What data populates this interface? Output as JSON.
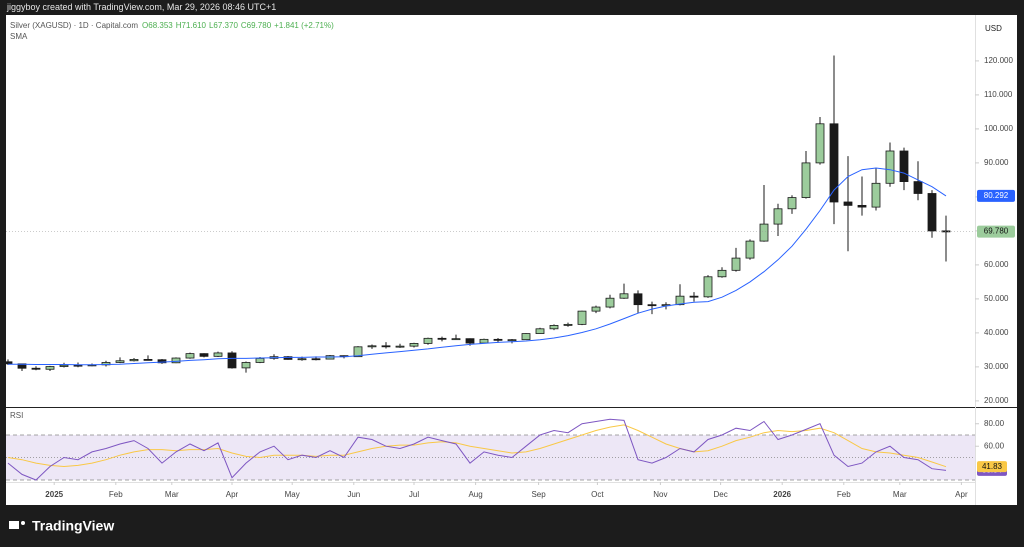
{
  "header": {
    "credit": "jiggyboy created with TradingView.com, Mar 29, 2026 08:46 UTC+1"
  },
  "footer": {
    "logo": "TradingView"
  },
  "chart_data": [
    {
      "type": "candlestick",
      "title": "Silver (XAGUSD) · 1D · Capital.com",
      "ohlc_labels": [
        "O68.353",
        "H71.610",
        "L67.370",
        "C69.780"
      ],
      "change_label": "+1.841 (+2.71%)",
      "indicator_label": "SMA",
      "currency": "USD",
      "up_color": "#9ccc9c",
      "down_color": "#1a1a1a",
      "open": [
        31.5,
        30.9,
        29.6,
        29.3,
        30.1,
        30.5,
        30.3,
        30.6,
        31.3,
        31.8,
        32.2,
        32.1,
        31.2,
        32.6,
        33.9,
        33.1,
        34.1,
        29.7,
        31.3,
        32.5,
        33.0,
        32.2,
        32.4,
        32.3,
        33.3,
        33.0,
        35.9,
        36.2,
        36.0,
        36.1,
        36.9,
        38.4,
        38.2,
        38.3,
        37.0,
        38.1,
        37.9,
        38.0,
        39.8,
        41.2,
        42.2,
        42.5,
        46.4,
        47.6,
        50.2,
        51.5,
        48.3,
        48.0,
        48.3,
        50.8,
        50.6,
        56.5,
        58.4,
        62.0,
        67.0,
        72.0,
        76.5,
        79.8,
        90.0,
        101.5,
        78.5,
        77.5,
        77.0,
        84.0,
        93.5,
        84.5,
        81.0,
        70.0
      ],
      "high": [
        32.2,
        31.0,
        30.2,
        30.3,
        31.2,
        31.3,
        31.0,
        31.8,
        32.8,
        32.6,
        33.4,
        32.3,
        32.8,
        34.2,
        34.0,
        34.5,
        34.6,
        31.6,
        32.9,
        33.7,
        33.2,
        33.0,
        33.1,
        33.5,
        33.4,
        36.1,
        36.6,
        37.3,
        36.8,
        37.1,
        38.6,
        38.9,
        39.5,
        38.4,
        38.3,
        38.5,
        38.2,
        39.9,
        41.5,
        42.5,
        43.0,
        46.5,
        48.0,
        51.2,
        54.5,
        52.5,
        49.2,
        49.0,
        54.3,
        52.0,
        57.0,
        59.3,
        65.0,
        67.5,
        83.5,
        78.0,
        80.5,
        93.5,
        103.5,
        121.6,
        92.0,
        86.0,
        88.5,
        96.0,
        94.5,
        90.5,
        82.0,
        74.5
      ],
      "low": [
        30.6,
        28.8,
        29.0,
        28.8,
        29.8,
        29.9,
        30.2,
        30.1,
        31.1,
        31.6,
        31.9,
        30.9,
        31.1,
        32.4,
        32.8,
        32.9,
        29.5,
        28.3,
        31.1,
        32.1,
        32.1,
        31.8,
        31.9,
        32.2,
        32.5,
        32.9,
        35.3,
        35.4,
        35.6,
        35.7,
        36.5,
        37.5,
        38.0,
        36.2,
        36.9,
        37.1,
        36.9,
        37.9,
        39.7,
        40.8,
        41.8,
        42.3,
        45.8,
        47.2,
        50.0,
        45.7,
        45.5,
        46.9,
        48.1,
        49.2,
        50.3,
        56.2,
        58.0,
        61.5,
        66.8,
        68.5,
        75.0,
        79.5,
        89.5,
        72.0,
        64.0,
        74.5,
        76.0,
        83.0,
        82.0,
        79.0,
        68.0,
        61.0
      ],
      "close": [
        30.9,
        29.6,
        29.3,
        30.1,
        30.5,
        30.3,
        30.6,
        31.3,
        31.8,
        32.2,
        32.1,
        31.2,
        32.6,
        33.9,
        33.1,
        34.1,
        29.7,
        31.3,
        32.5,
        33.0,
        32.2,
        32.4,
        32.3,
        33.3,
        33.0,
        35.9,
        36.2,
        36.0,
        36.1,
        36.9,
        38.4,
        38.2,
        38.3,
        37.0,
        38.1,
        37.9,
        38.0,
        39.8,
        41.2,
        42.2,
        42.5,
        46.4,
        47.6,
        50.2,
        51.5,
        48.3,
        48.0,
        48.3,
        50.8,
        50.6,
        56.5,
        58.4,
        62.0,
        67.0,
        72.0,
        76.5,
        79.8,
        90.0,
        101.5,
        78.5,
        77.5,
        77.0,
        84.0,
        93.5,
        84.5,
        81.0,
        70.0,
        69.78
      ],
      "close_label": "69.780",
      "series": [
        {
          "name": "SMA",
          "color": "#2962ff",
          "values": [
            30.8,
            30.8,
            30.7,
            30.7,
            30.7,
            30.6,
            30.6,
            30.7,
            30.8,
            31.0,
            31.2,
            31.4,
            31.6,
            31.9,
            32.1,
            32.4,
            32.5,
            32.5,
            32.6,
            32.7,
            32.8,
            32.8,
            32.9,
            32.9,
            33.0,
            33.3,
            33.7,
            34.1,
            34.5,
            34.9,
            35.3,
            35.8,
            36.2,
            36.6,
            36.9,
            37.2,
            37.4,
            37.6,
            38.0,
            38.5,
            39.2,
            40.1,
            41.2,
            42.6,
            44.2,
            45.8,
            47.0,
            47.9,
            48.5,
            49.0,
            49.2,
            50.5,
            52.5,
            55.0,
            58.0,
            61.5,
            65.5,
            70.5,
            76.0,
            82.0,
            86.0,
            88.0,
            88.5,
            88.0,
            87.0,
            85.0,
            83.0,
            80.292
          ]
        }
      ],
      "ylim": [
        18.2,
        133.5
      ],
      "yticks": [
        {
          "value": 120,
          "label": "120.000"
        },
        {
          "value": 110,
          "label": "110.000"
        },
        {
          "value": 100,
          "label": "100.000"
        },
        {
          "value": 90,
          "label": "90.000"
        },
        {
          "value": 80,
          "label": "80.000"
        },
        {
          "value": 70,
          "label": "70.000"
        },
        {
          "value": 60,
          "label": "60.000"
        },
        {
          "value": 50,
          "label": "50.000"
        },
        {
          "value": 40,
          "label": "40.000"
        },
        {
          "value": 30,
          "label": "30.000"
        },
        {
          "value": 20,
          "label": "20.000"
        }
      ],
      "xticks": [
        {
          "value": 3.3,
          "label": "2025"
        },
        {
          "value": 7.7,
          "label": "Feb"
        },
        {
          "value": 11.7,
          "label": "Mar"
        },
        {
          "value": 16,
          "label": "Apr"
        },
        {
          "value": 20.3,
          "label": "May"
        },
        {
          "value": 24.7,
          "label": "Jun"
        },
        {
          "value": 29,
          "label": "Jul"
        },
        {
          "value": 33.4,
          "label": "Aug"
        },
        {
          "value": 37.9,
          "label": "Sep"
        },
        {
          "value": 42.1,
          "label": "Oct"
        },
        {
          "value": 46.6,
          "label": "Nov"
        },
        {
          "value": 50.9,
          "label": "Dec"
        },
        {
          "value": 55.3,
          "label": "2026"
        },
        {
          "value": 59.7,
          "label": "Feb"
        },
        {
          "value": 63.7,
          "label": "Mar"
        },
        {
          "value": 68.1,
          "label": "Apr"
        }
      ]
    },
    {
      "type": "line",
      "title": "RSI",
      "series": [
        {
          "color": "#7e57c2",
          "values": [
            45,
            35,
            30,
            42,
            50,
            48,
            55,
            58,
            62,
            65,
            58,
            45,
            55,
            62,
            56,
            63,
            32,
            45,
            55,
            60,
            48,
            52,
            50,
            56,
            50,
            68,
            66,
            60,
            58,
            62,
            68,
            65,
            62,
            45,
            55,
            52,
            50,
            60,
            70,
            74,
            72,
            80,
            82,
            84,
            83,
            48,
            45,
            50,
            58,
            55,
            66,
            70,
            76,
            74,
            82,
            66,
            70,
            75,
            80,
            52,
            42,
            45,
            55,
            60,
            50,
            48,
            40,
            38.54
          ]
        },
        {
          "color": "#f9c846",
          "values": [
            50,
            48,
            45,
            43,
            42,
            43,
            45,
            48,
            52,
            55,
            57,
            57,
            56,
            57,
            57,
            58,
            54,
            51,
            50,
            52,
            52,
            52,
            51,
            52,
            52,
            55,
            58,
            60,
            61,
            61,
            63,
            64,
            63,
            60,
            58,
            56,
            54,
            55,
            58,
            62,
            66,
            70,
            74,
            77,
            79,
            74,
            68,
            62,
            58,
            55,
            56,
            60,
            65,
            68,
            72,
            74,
            73,
            74,
            76,
            72,
            65,
            58,
            55,
            54,
            52,
            50,
            46,
            41.83
          ]
        }
      ],
      "bands": [
        70,
        50,
        30
      ],
      "band_color": "#ede7f6",
      "ylim": [
        28.2,
        94
      ],
      "yticks": [
        {
          "value": 80,
          "label": "80.00"
        },
        {
          "value": 60,
          "label": "60.00"
        }
      ]
    }
  ]
}
